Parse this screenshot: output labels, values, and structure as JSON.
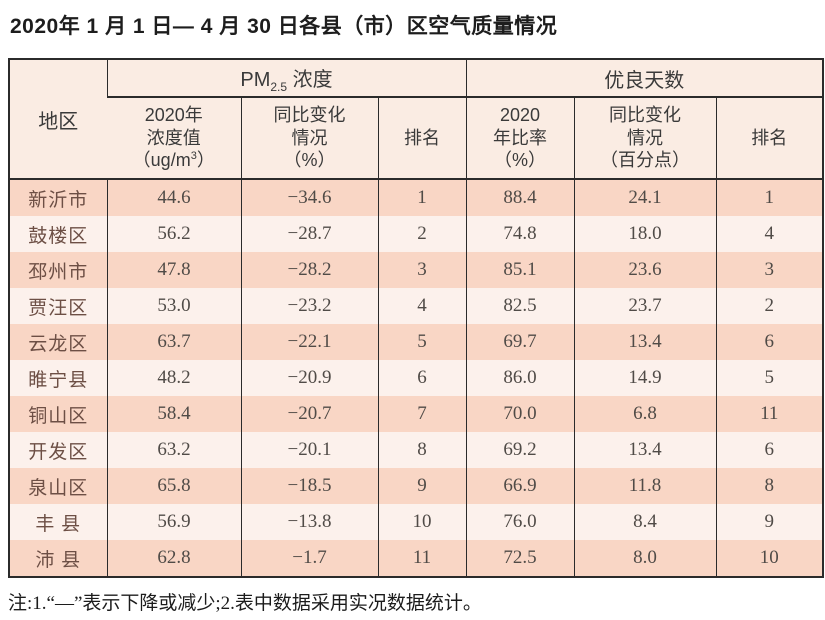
{
  "page": {
    "title": "2020年 1 月 1 日— 4 月 30 日各县（市）区空气质量情况"
  },
  "table": {
    "header": {
      "region": "地区",
      "pm_group": {
        "prefix": "PM",
        "subscript": "2.5",
        "suffix": " 浓度"
      },
      "days_group": "优良天数",
      "pm_value": {
        "line1": "2020年",
        "line2": "浓度值",
        "line3_pre": "（ug/m",
        "line3_sup": "3",
        "line3_post": "）"
      },
      "pm_change": {
        "line1": "同比变化",
        "line2": "情况",
        "line3": "（%）"
      },
      "pm_rank": "排名",
      "days_ratio": {
        "line1": "2020",
        "line2": "年比率",
        "line3": "（%）"
      },
      "days_change": {
        "line1": "同比变化",
        "line2": "情况",
        "line3": "（百分点）"
      },
      "days_rank": "排名"
    },
    "rows": [
      {
        "region": "新沂市",
        "pm_value": "44.6",
        "pm_change": "−34.6",
        "pm_rank": "1",
        "days_ratio": "88.4",
        "days_change": "24.1",
        "days_rank": "1"
      },
      {
        "region": "鼓楼区",
        "pm_value": "56.2",
        "pm_change": "−28.7",
        "pm_rank": "2",
        "days_ratio": "74.8",
        "days_change": "18.0",
        "days_rank": "4"
      },
      {
        "region": "邳州市",
        "pm_value": "47.8",
        "pm_change": "−28.2",
        "pm_rank": "3",
        "days_ratio": "85.1",
        "days_change": "23.6",
        "days_rank": "3"
      },
      {
        "region": "贾汪区",
        "pm_value": "53.0",
        "pm_change": "−23.2",
        "pm_rank": "4",
        "days_ratio": "82.5",
        "days_change": "23.7",
        "days_rank": "2"
      },
      {
        "region": "云龙区",
        "pm_value": "63.7",
        "pm_change": "−22.1",
        "pm_rank": "5",
        "days_ratio": "69.7",
        "days_change": "13.4",
        "days_rank": "6"
      },
      {
        "region": "睢宁县",
        "pm_value": "48.2",
        "pm_change": "−20.9",
        "pm_rank": "6",
        "days_ratio": "86.0",
        "days_change": "14.9",
        "days_rank": "5"
      },
      {
        "region": "铜山区",
        "pm_value": "58.4",
        "pm_change": "−20.7",
        "pm_rank": "7",
        "days_ratio": "70.0",
        "days_change": "6.8",
        "days_rank": "11"
      },
      {
        "region": "开发区",
        "pm_value": "63.2",
        "pm_change": "−20.1",
        "pm_rank": "8",
        "days_ratio": "69.2",
        "days_change": "13.4",
        "days_rank": "6"
      },
      {
        "region": "泉山区",
        "pm_value": "65.8",
        "pm_change": "−18.5",
        "pm_rank": "9",
        "days_ratio": "66.9",
        "days_change": "11.8",
        "days_rank": "8"
      },
      {
        "region": "丰 县",
        "pm_value": "56.9",
        "pm_change": "−13.8",
        "pm_rank": "10",
        "days_ratio": "76.0",
        "days_change": "8.4",
        "days_rank": "9"
      },
      {
        "region": "沛 县",
        "pm_value": "62.8",
        "pm_change": "−1.7",
        "pm_rank": "11",
        "days_ratio": "72.5",
        "days_change": "8.0",
        "days_rank": "10"
      }
    ]
  },
  "note": "注:1.“—”表示下降或减少;2.表中数据采用实况数据统计。",
  "colors": {
    "row_dark": "#f9d6c5",
    "row_light": "#fcf1ec",
    "header_bg": "#faece3",
    "border": "#2b2b2b"
  }
}
